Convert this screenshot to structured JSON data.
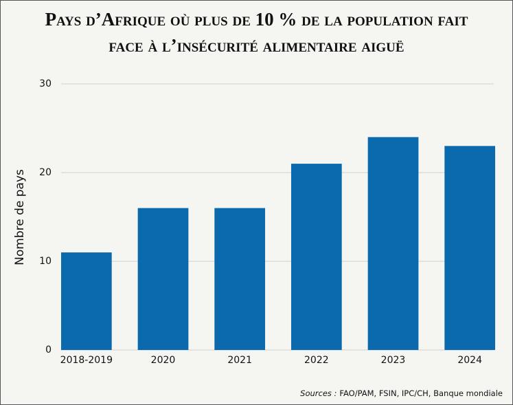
{
  "chart_data": {
    "type": "bar",
    "title": "Pays d’Afrique où plus de 10 % de la population fait face à l’insécurité alimentaire aiguë",
    "y_label": "Nombre de pays",
    "categories": [
      "2018-2019",
      "2020",
      "2021",
      "2022",
      "2023",
      "2024"
    ],
    "values": [
      11,
      16,
      16,
      21,
      24,
      23
    ],
    "color": "#0b6aae",
    "ylim": [
      0,
      30
    ],
    "yticks": [
      0,
      10,
      20,
      30
    ],
    "grid": true,
    "source_label": "Sources :",
    "source": "FAO/PAM, FSIN, IPC/CH, Banque mondiale"
  }
}
